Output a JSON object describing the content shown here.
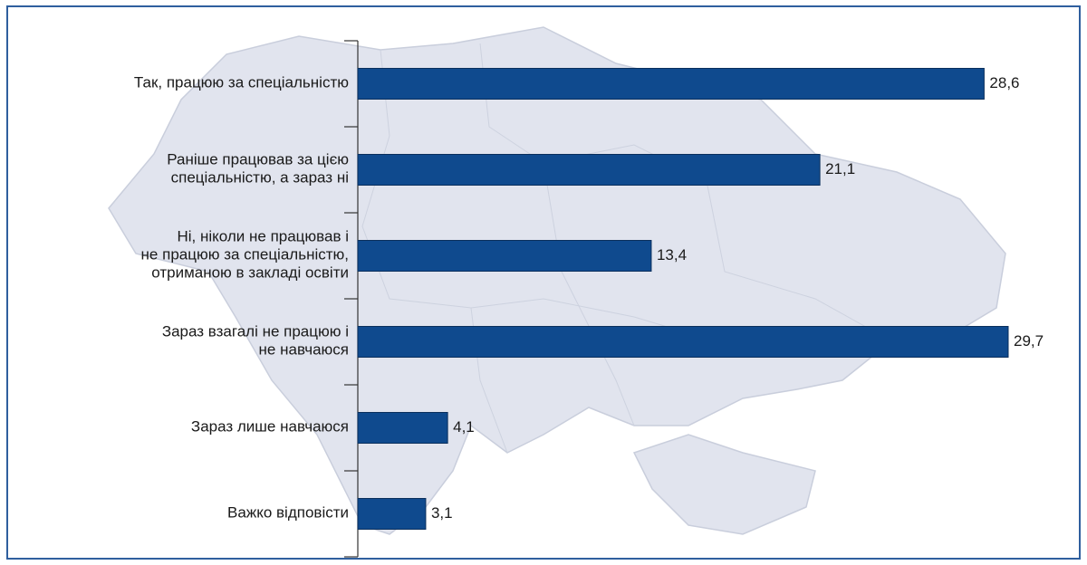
{
  "chart_data": {
    "type": "barh",
    "categories": [
      "Так, працюю за спеціальністю",
      "Раніше працював за цією\nспеціальністю, а зараз ні",
      "Ні, ніколи не працював і\nне працюю за спеціальністю,\nотриманою в закладі освіти",
      "Зараз взагалі не працюю і\nне навчаюся",
      "Зараз лише навчаюся",
      "Важко відповісти"
    ],
    "values": [
      28.6,
      21.1,
      13.4,
      29.7,
      4.1,
      3.1
    ],
    "value_labels": [
      "28,6",
      "21,1",
      "13,4",
      "29,7",
      "4,1",
      "3,1"
    ],
    "color": "#0f4a8e"
  }
}
